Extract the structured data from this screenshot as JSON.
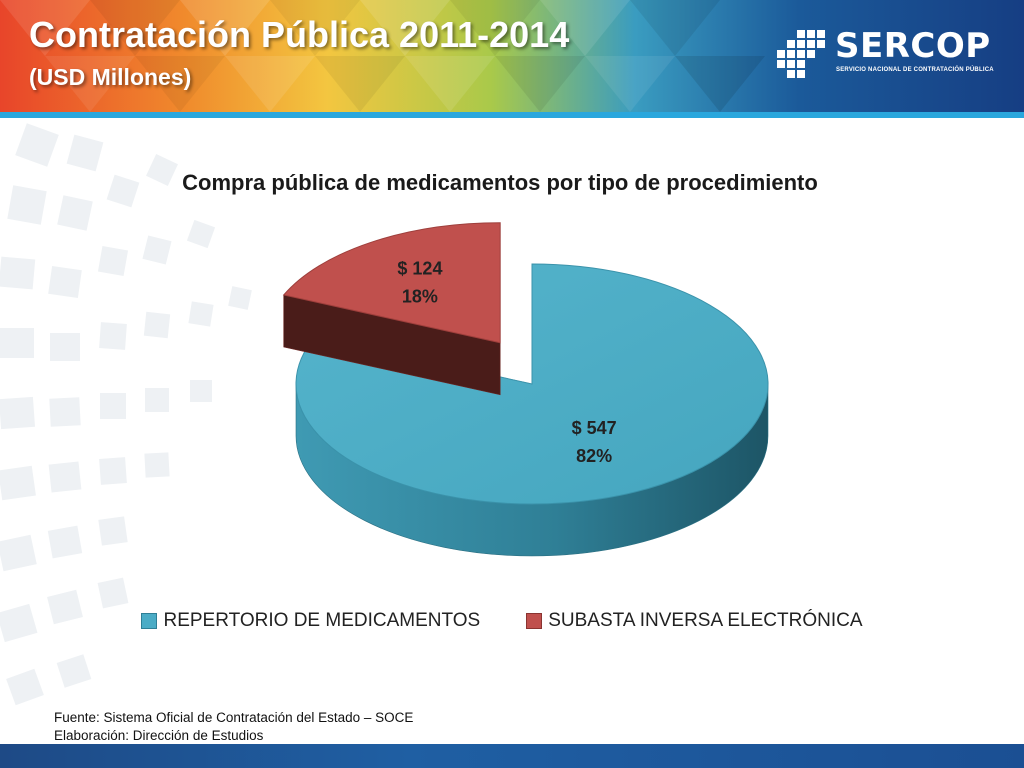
{
  "header": {
    "title": "Contratación Pública 2011-2014",
    "subtitle": "(USD Millones)",
    "logo_name": "SERCOP",
    "logo_tagline": "SERVICIO NACIONAL DE CONTRATACIÓN PÚBLICA"
  },
  "chart_data": {
    "type": "pie",
    "title": "Compra pública de medicamentos por tipo de procedimiento",
    "three_d": true,
    "exploded_slice": 1,
    "legend_position": "bottom",
    "categories": [
      "REPERTORIO DE MEDICAMENTOS",
      "SUBASTA INVERSA ELECTRÓNICA"
    ],
    "values": [
      547,
      124
    ],
    "value_labels": [
      "$ 547",
      "$ 124"
    ],
    "percent_labels": [
      "82%",
      "18%"
    ],
    "colors": [
      "#4bacc6",
      "#c0504d"
    ]
  },
  "footnote": {
    "source": "Fuente: Sistema Oficial de Contratación del Estado – SOCE",
    "credit": "Elaboración: Dirección de Estudios"
  },
  "colors": {
    "header_stripe": "#2aa7dd",
    "footer_bar": "#1f5fa3"
  }
}
